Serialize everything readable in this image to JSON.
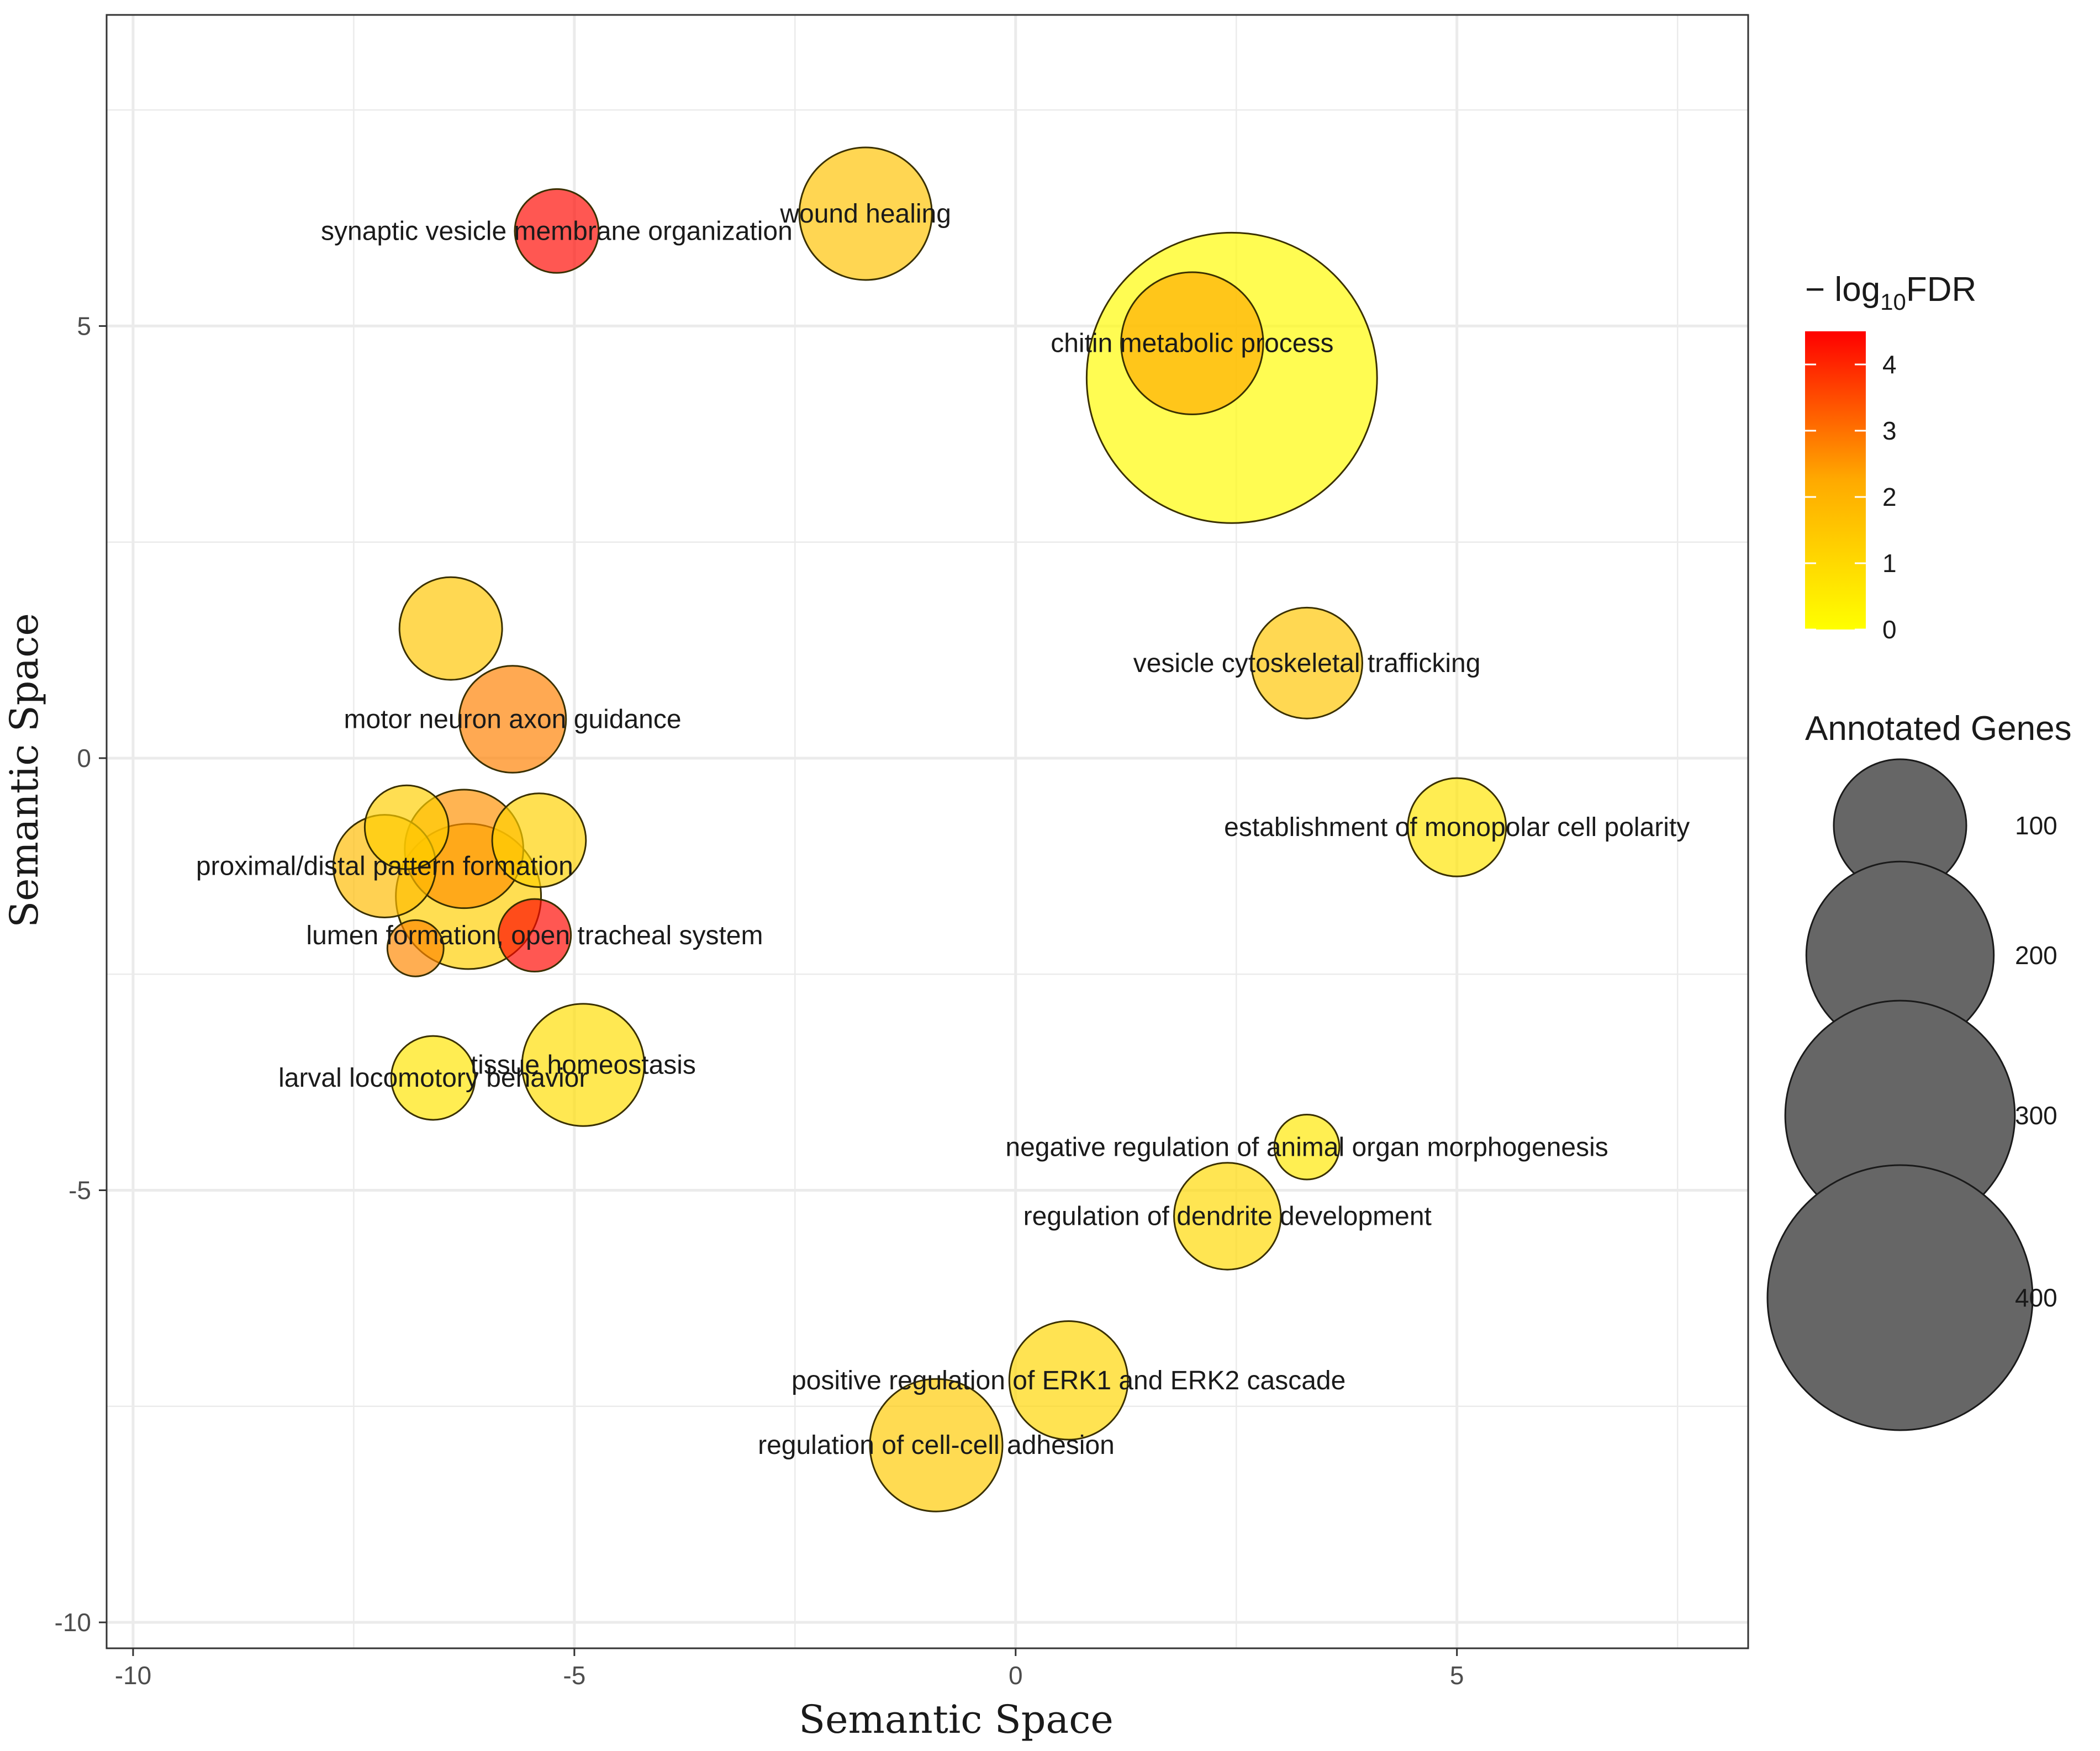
{
  "chart_data": {
    "type": "scatter",
    "title": "",
    "xlabel": "Semantic Space",
    "ylabel": "Semantic Space",
    "xlim": [
      -10.3,
      8.3
    ],
    "ylim": [
      -10.3,
      8.6
    ],
    "x_ticks": [
      -10,
      -5,
      0,
      5
    ],
    "y_ticks": [
      -10,
      -5,
      0,
      5
    ],
    "grid": true,
    "color_legend": {
      "title_prefix": "− log",
      "title_sub": "10",
      "title_suffix": "FDR",
      "ticks": [
        0,
        1,
        2,
        3,
        4
      ],
      "range": [
        0,
        4.5
      ],
      "colors": [
        "#ffff00",
        "#ff0000"
      ]
    },
    "size_legend": {
      "title": "Annotated Genes",
      "values": [
        100,
        200,
        300,
        400
      ],
      "fill": "#666666"
    },
    "points": [
      {
        "x": 2.45,
        "y": 4.4,
        "genes": 480,
        "fdr": 0.1,
        "label": ""
      },
      {
        "x": 2.0,
        "y": 4.8,
        "genes": 115,
        "fdr": 2.2,
        "label": "chitin metabolic process"
      },
      {
        "x": -1.7,
        "y": 6.3,
        "genes": 100,
        "fdr": 1.6,
        "label": "wound healing"
      },
      {
        "x": -5.2,
        "y": 6.1,
        "genes": 40,
        "fdr": 4.4,
        "label": "synaptic vesicle membrane organization"
      },
      {
        "x": -6.4,
        "y": 1.5,
        "genes": 60,
        "fdr": 1.5,
        "label": ""
      },
      {
        "x": -5.7,
        "y": 0.45,
        "genes": 65,
        "fdr": 2.8,
        "label": "motor neuron axon guidance"
      },
      {
        "x": 3.3,
        "y": 1.1,
        "genes": 70,
        "fdr": 1.5,
        "label": "vesicle cytoskeletal trafficking"
      },
      {
        "x": 5.0,
        "y": -0.8,
        "genes": 55,
        "fdr": 0.7,
        "label": "establishment of monopolar cell polarity"
      },
      {
        "x": -6.9,
        "y": -0.8,
        "genes": 40,
        "fdr": 1.3,
        "label": ""
      },
      {
        "x": -6.25,
        "y": -1.05,
        "genes": 80,
        "fdr": 2.6,
        "label": ""
      },
      {
        "x": -5.4,
        "y": -0.95,
        "genes": 50,
        "fdr": 1.2,
        "label": ""
      },
      {
        "x": -7.15,
        "y": -1.25,
        "genes": 60,
        "fdr": 1.8,
        "label": "proximal/distal pattern formation"
      },
      {
        "x": -6.2,
        "y": -1.6,
        "genes": 120,
        "fdr": 1.3,
        "label": ""
      },
      {
        "x": -5.45,
        "y": -2.05,
        "genes": 30,
        "fdr": 4.4,
        "label": "lumen formation, open tracheal system"
      },
      {
        "x": -6.8,
        "y": -2.2,
        "genes": 18,
        "fdr": 2.7,
        "label": ""
      },
      {
        "x": -4.9,
        "y": -3.55,
        "genes": 85,
        "fdr": 0.9,
        "label": "tissue homeostasis"
      },
      {
        "x": -6.6,
        "y": -3.7,
        "genes": 40,
        "fdr": 0.7,
        "label": "larval locomotory behavior"
      },
      {
        "x": 3.3,
        "y": -4.5,
        "genes": 24,
        "fdr": 0.6,
        "label": "negative regulation of animal organ morphogenesis"
      },
      {
        "x": 2.4,
        "y": -5.3,
        "genes": 65,
        "fdr": 1.0,
        "label": "regulation of dendrite development"
      },
      {
        "x": 0.6,
        "y": -7.2,
        "genes": 80,
        "fdr": 1.1,
        "label": "positive regulation of ERK1 and ERK2 cascade"
      },
      {
        "x": -0.9,
        "y": -7.95,
        "genes": 100,
        "fdr": 1.4,
        "label": "regulation of cell-cell adhesion"
      }
    ]
  }
}
